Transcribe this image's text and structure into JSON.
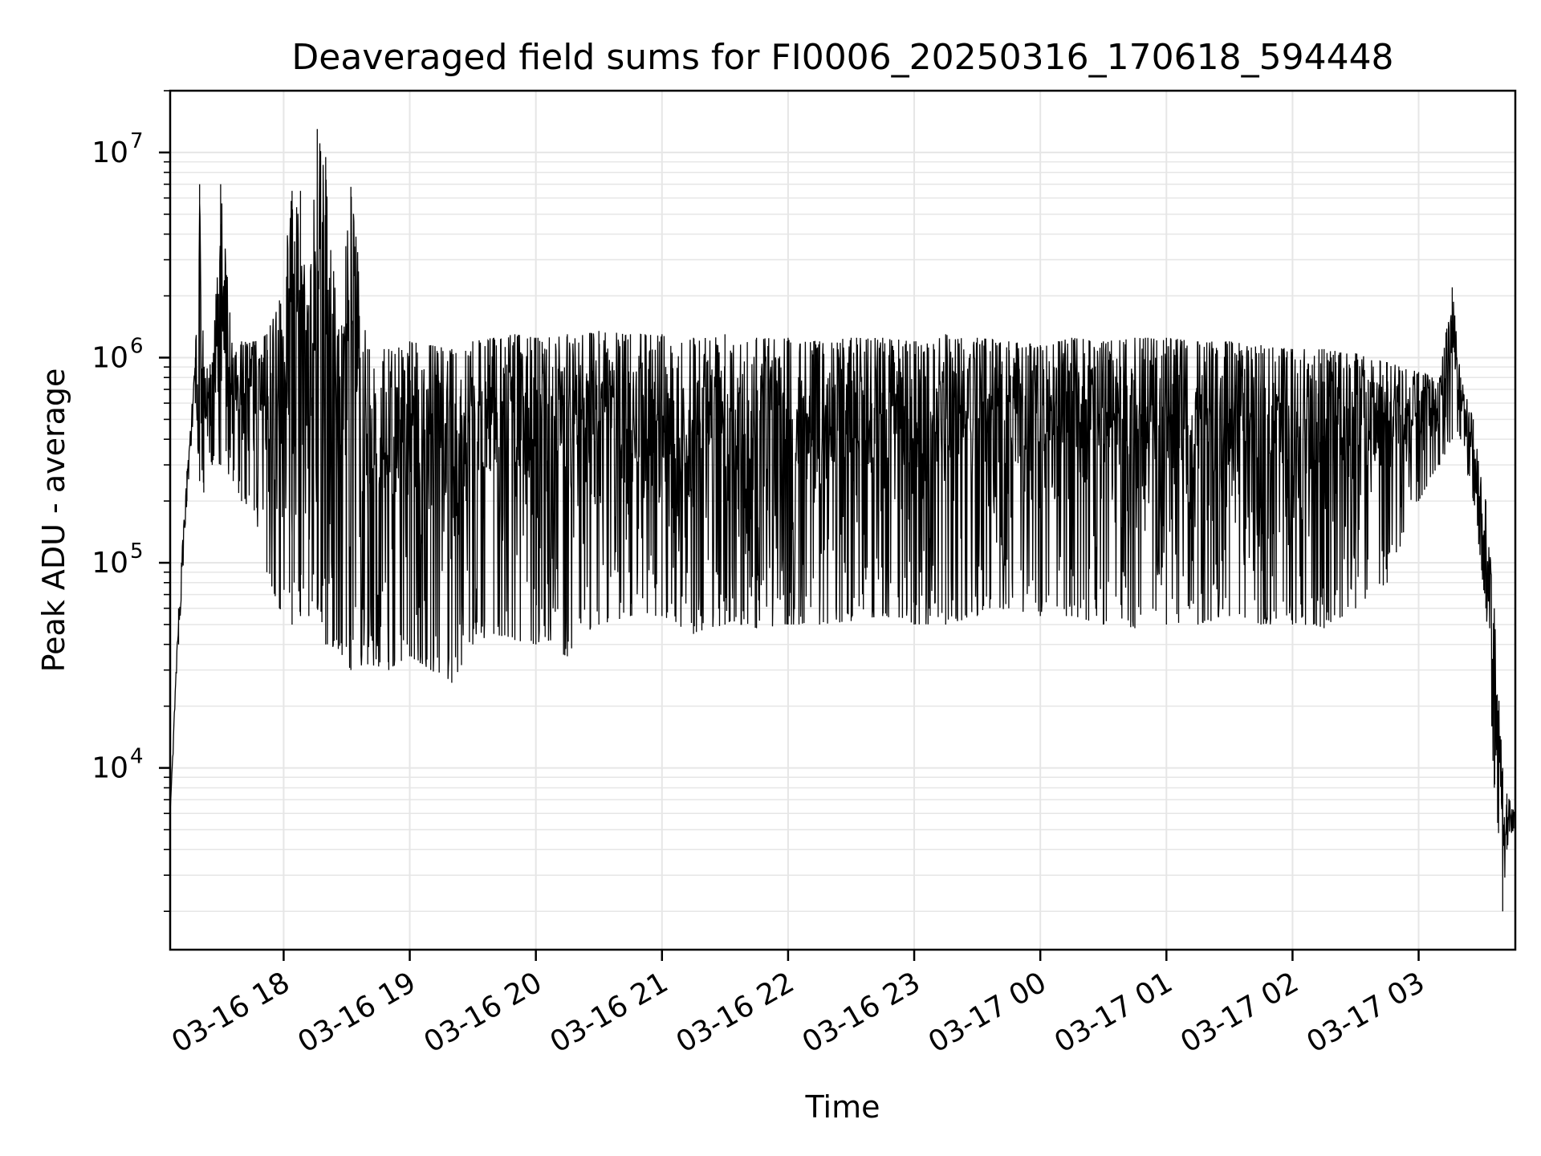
{
  "chart_data": {
    "type": "line",
    "title": "Deaveraged field sums for FI0006_20250316_170618_594448",
    "xlabel": "Time",
    "ylabel": "Peak ADU - average",
    "yscale": "log",
    "ylim": [
      1300,
      20000000
    ],
    "xlim": [
      "2025-03-16 17:06",
      "2025-03-17 03:46"
    ],
    "grid": true,
    "line_color": "#000000",
    "x_ticks": [
      {
        "t": "2025-03-16 18:00",
        "label": "03-16 18"
      },
      {
        "t": "2025-03-16 19:00",
        "label": "03-16 19"
      },
      {
        "t": "2025-03-16 20:00",
        "label": "03-16 20"
      },
      {
        "t": "2025-03-16 21:00",
        "label": "03-16 21"
      },
      {
        "t": "2025-03-16 22:00",
        "label": "03-16 22"
      },
      {
        "t": "2025-03-16 23:00",
        "label": "03-16 23"
      },
      {
        "t": "2025-03-17 00:00",
        "label": "03-17 00"
      },
      {
        "t": "2025-03-17 01:00",
        "label": "03-17 01"
      },
      {
        "t": "2025-03-17 02:00",
        "label": "03-17 02"
      },
      {
        "t": "2025-03-17 03:00",
        "label": "03-17 03"
      }
    ],
    "y_ticks": [
      {
        "value": 10000,
        "base": "10",
        "exp": "4"
      },
      {
        "value": 100000,
        "base": "10",
        "exp": "5"
      },
      {
        "value": 1000000,
        "base": "10",
        "exp": "6"
      },
      {
        "value": 10000000,
        "base": "10",
        "exp": "7"
      }
    ],
    "series": [
      {
        "x": [
          "2025-03-16 17:06",
          "2025-03-16 17:10",
          "2025-03-16 17:14",
          "2025-03-16 17:18",
          "2025-03-16 17:20",
          "2025-03-16 17:22",
          "2025-03-16 17:26",
          "2025-03-16 17:30",
          "2025-03-16 17:36",
          "2025-03-16 17:40",
          "2025-03-16 17:46",
          "2025-03-16 17:52",
          "2025-03-16 17:58",
          "2025-03-16 18:04",
          "2025-03-16 18:08",
          "2025-03-16 18:12",
          "2025-03-16 18:16",
          "2025-03-16 18:20",
          "2025-03-16 18:26",
          "2025-03-16 18:32",
          "2025-03-16 18:40",
          "2025-03-16 18:50",
          "2025-03-16 19:00",
          "2025-03-16 19:10",
          "2025-03-16 19:20",
          "2025-03-16 19:30",
          "2025-03-16 19:40",
          "2025-03-16 19:50",
          "2025-03-16 20:00",
          "2025-03-16 20:15",
          "2025-03-16 20:30",
          "2025-03-16 20:45",
          "2025-03-16 21:00",
          "2025-03-16 21:15",
          "2025-03-16 21:30",
          "2025-03-16 21:45",
          "2025-03-16 22:00",
          "2025-03-16 22:15",
          "2025-03-16 22:30",
          "2025-03-16 22:45",
          "2025-03-16 23:00",
          "2025-03-16 23:15",
          "2025-03-16 23:30",
          "2025-03-16 23:45",
          "2025-03-17 00:00",
          "2025-03-17 00:15",
          "2025-03-17 00:30",
          "2025-03-17 00:45",
          "2025-03-17 01:00",
          "2025-03-17 01:15",
          "2025-03-17 01:30",
          "2025-03-17 01:45",
          "2025-03-17 02:00",
          "2025-03-17 02:15",
          "2025-03-17 02:30",
          "2025-03-17 02:45",
          "2025-03-17 03:00",
          "2025-03-17 03:10",
          "2025-03-17 03:16",
          "2025-03-17 03:20",
          "2025-03-17 03:26",
          "2025-03-17 03:32",
          "2025-03-17 03:36",
          "2025-03-17 03:40",
          "2025-03-17 03:42",
          "2025-03-17 03:46"
        ],
        "upper": [
          6000,
          60000,
          280000,
          1000000,
          7000000,
          900000,
          950000,
          7000000,
          1000000,
          1200000,
          1200000,
          1300000,
          1900000,
          6500000,
          6500000,
          1800000,
          13000000,
          9500000,
          1300000,
          6800000,
          1100000,
          1100000,
          1200000,
          1150000,
          1100000,
          1200000,
          1250000,
          1300000,
          1250000,
          1300000,
          1350000,
          1300000,
          1300000,
          1250000,
          1300000,
          1250000,
          1250000,
          1200000,
          1250000,
          1250000,
          1200000,
          1300000,
          1250000,
          1200000,
          1150000,
          1250000,
          1200000,
          1250000,
          1250000,
          1200000,
          1200000,
          1150000,
          1100000,
          1100000,
          1050000,
          950000,
          850000,
          800000,
          2200000,
          800000,
          500000,
          200000,
          60000,
          10000,
          7500,
          6000
        ],
        "lower": [
          6000,
          40000,
          200000,
          600000,
          250000,
          220000,
          300000,
          300000,
          250000,
          200000,
          180000,
          90000,
          60000,
          50000,
          55000,
          55000,
          60000,
          40000,
          38000,
          30000,
          32000,
          30000,
          35000,
          30000,
          26000,
          40000,
          45000,
          42000,
          40000,
          35000,
          50000,
          55000,
          55000,
          45000,
          50000,
          48000,
          50000,
          50000,
          52000,
          55000,
          50000,
          50000,
          55000,
          60000,
          55000,
          55000,
          50000,
          48000,
          50000,
          50000,
          55000,
          50000,
          50000,
          48000,
          60000,
          80000,
          200000,
          300000,
          400000,
          400000,
          200000,
          60000,
          8000,
          2000,
          4000,
          5000
        ]
      }
    ]
  }
}
